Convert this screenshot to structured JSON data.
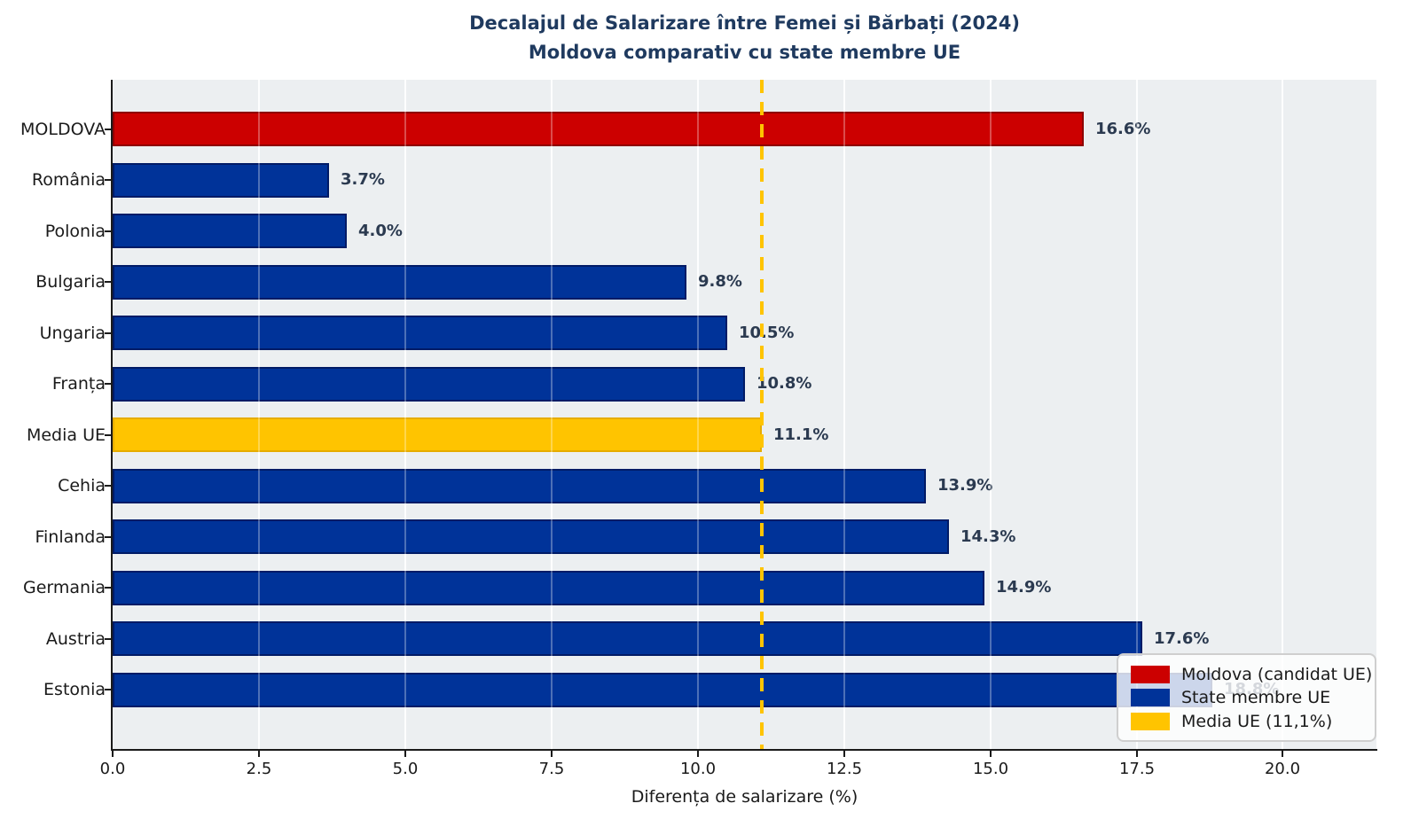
{
  "title": {
    "line1": "Decalajul de Salarizare între Femei și Bărbați (2024)",
    "line2": "Moldova comparativ cu state membre UE"
  },
  "chart_data": {
    "type": "bar",
    "orientation": "horizontal",
    "categories": [
      "MOLDOVA",
      "România",
      "Polonia",
      "Bulgaria",
      "Ungaria",
      "Franța",
      "Media UE",
      "Cehia",
      "Finlanda",
      "Germania",
      "Austria",
      "Estonia"
    ],
    "values": [
      16.6,
      3.7,
      4.0,
      9.8,
      10.5,
      10.8,
      11.1,
      13.9,
      14.3,
      14.9,
      17.6,
      18.8
    ],
    "value_labels": [
      "16.6%",
      "3.7%",
      "4.0%",
      "9.8%",
      "10.5%",
      "10.8%",
      "11.1%",
      "13.9%",
      "14.3%",
      "14.9%",
      "17.6%",
      "18.8%"
    ],
    "bar_roles": [
      "moldova",
      "member",
      "member",
      "member",
      "member",
      "member",
      "average",
      "member",
      "member",
      "member",
      "member",
      "member"
    ],
    "xlabel": "Diferența de salarizare (%)",
    "x_ticks": [
      0,
      2.5,
      5,
      7.5,
      10,
      12.5,
      15,
      17.5,
      20
    ],
    "x_tick_labels": [
      "0.0",
      "2.5",
      "5.0",
      "7.5",
      "10.0",
      "12.5",
      "15.0",
      "17.5",
      "20.0"
    ],
    "xlim": [
      0,
      21.6
    ],
    "grid": "vertical, white, on light gray panel",
    "reference_line": {
      "value": 11.1,
      "style": "dashed",
      "color": "#FFC400"
    },
    "legend": {
      "position": "lower right",
      "items": [
        {
          "label": "Moldova (candidat UE)",
          "role": "moldova"
        },
        {
          "label": "State membre UE",
          "role": "member"
        },
        {
          "label": "Media UE (11,1%)",
          "role": "average"
        }
      ]
    }
  },
  "colors": {
    "moldova": "#CC0000",
    "moldova_edge": "#8E0000",
    "member": "#003399",
    "member_edge": "#001B66",
    "average": "#FFC400",
    "average_edge": "#E6AC00",
    "reference_line": "#FFC400",
    "title": "#1F3A5F",
    "value_label": "#2B3A50",
    "axis_text": "#1A1A1A",
    "plot_background": "#ECEFF1",
    "grid": "#FFFFFF",
    "figure_background": "#FFFFFF",
    "legend_border": "#CFCFCF"
  }
}
